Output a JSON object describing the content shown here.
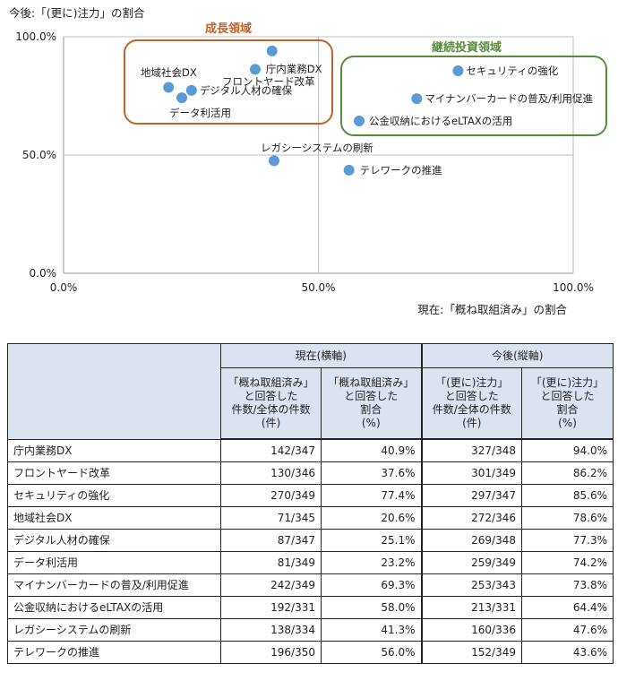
{
  "chart_data": {
    "type": "scatter",
    "ylabel": "今後:「(更に)注力」の割合",
    "xlabel": "現在:「概ね取組済み」の割合",
    "xlim": [
      0,
      100
    ],
    "ylim": [
      0,
      100
    ],
    "x_ticks": [
      "0.0%",
      "50.0%",
      "100.0%"
    ],
    "y_ticks": [
      "0.0%",
      "50.0%",
      "100.0%"
    ],
    "point_color": "#5b9bd5",
    "points": [
      {
        "label": "庁内業務DX",
        "x": 40.9,
        "y": 94.0
      },
      {
        "label": "フロントヤード改革",
        "x": 37.6,
        "y": 86.2
      },
      {
        "label": "セキュリティの強化",
        "x": 77.4,
        "y": 85.6
      },
      {
        "label": "地域社会DX",
        "x": 20.6,
        "y": 78.6
      },
      {
        "label": "デジタル人材の確保",
        "x": 25.1,
        "y": 77.3
      },
      {
        "label": "データ利活用",
        "x": 23.2,
        "y": 74.2
      },
      {
        "label": "マイナンバーカードの普及/利用促進",
        "x": 69.3,
        "y": 73.8
      },
      {
        "label": "公金収納におけるeLTAXの活用",
        "x": 58.0,
        "y": 64.4
      },
      {
        "label": "レガシーシステムの刷新",
        "x": 41.3,
        "y": 47.6
      },
      {
        "label": "テレワークの推進",
        "x": 56.0,
        "y": 43.6
      }
    ],
    "groups": [
      {
        "label": "成長領域",
        "color": "#c0622a"
      },
      {
        "label": "継続投資領域",
        "color": "#5a8a3c"
      }
    ]
  },
  "table": {
    "header_group_current": "現在(横軸)",
    "header_group_future": "今後(縦軸)",
    "sub_headers": [
      "「概ね取組済み」\nと回答した\n件数/全体の件数\n(件)",
      "「概ね取組済み」\nと回答した\n割合\n(%)",
      "「(更に)注力」\nと回答した\n件数/全体の件数\n(件)",
      "「(更に)注力」\nと回答した\n割合\n(%)"
    ],
    "rows": [
      {
        "name": "庁内業務DX",
        "cur_count": "142/347",
        "cur_pct": "40.9%",
        "fut_count": "327/348",
        "fut_pct": "94.0%"
      },
      {
        "name": "フロントヤード改革",
        "cur_count": "130/346",
        "cur_pct": "37.6%",
        "fut_count": "301/349",
        "fut_pct": "86.2%"
      },
      {
        "name": "セキュリティの強化",
        "cur_count": "270/349",
        "cur_pct": "77.4%",
        "fut_count": "297/347",
        "fut_pct": "85.6%"
      },
      {
        "name": "地域社会DX",
        "cur_count": "71/345",
        "cur_pct": "20.6%",
        "fut_count": "272/346",
        "fut_pct": "78.6%"
      },
      {
        "name": "デジタル人材の確保",
        "cur_count": "87/347",
        "cur_pct": "25.1%",
        "fut_count": "269/348",
        "fut_pct": "77.3%"
      },
      {
        "name": "データ利活用",
        "cur_count": "81/349",
        "cur_pct": "23.2%",
        "fut_count": "259/349",
        "fut_pct": "74.2%"
      },
      {
        "name": "マイナンバーカードの普及/利用促進",
        "cur_count": "242/349",
        "cur_pct": "69.3%",
        "fut_count": "253/343",
        "fut_pct": "73.8%"
      },
      {
        "name": "公金収納におけるeLTAXの活用",
        "cur_count": "192/331",
        "cur_pct": "58.0%",
        "fut_count": "213/331",
        "fut_pct": "64.4%"
      },
      {
        "name": "レガシーシステムの刷新",
        "cur_count": "138/334",
        "cur_pct": "41.3%",
        "fut_count": "160/336",
        "fut_pct": "47.6%"
      },
      {
        "name": "テレワークの推進",
        "cur_count": "196/350",
        "cur_pct": "56.0%",
        "fut_count": "152/349",
        "fut_pct": "43.6%"
      }
    ]
  }
}
